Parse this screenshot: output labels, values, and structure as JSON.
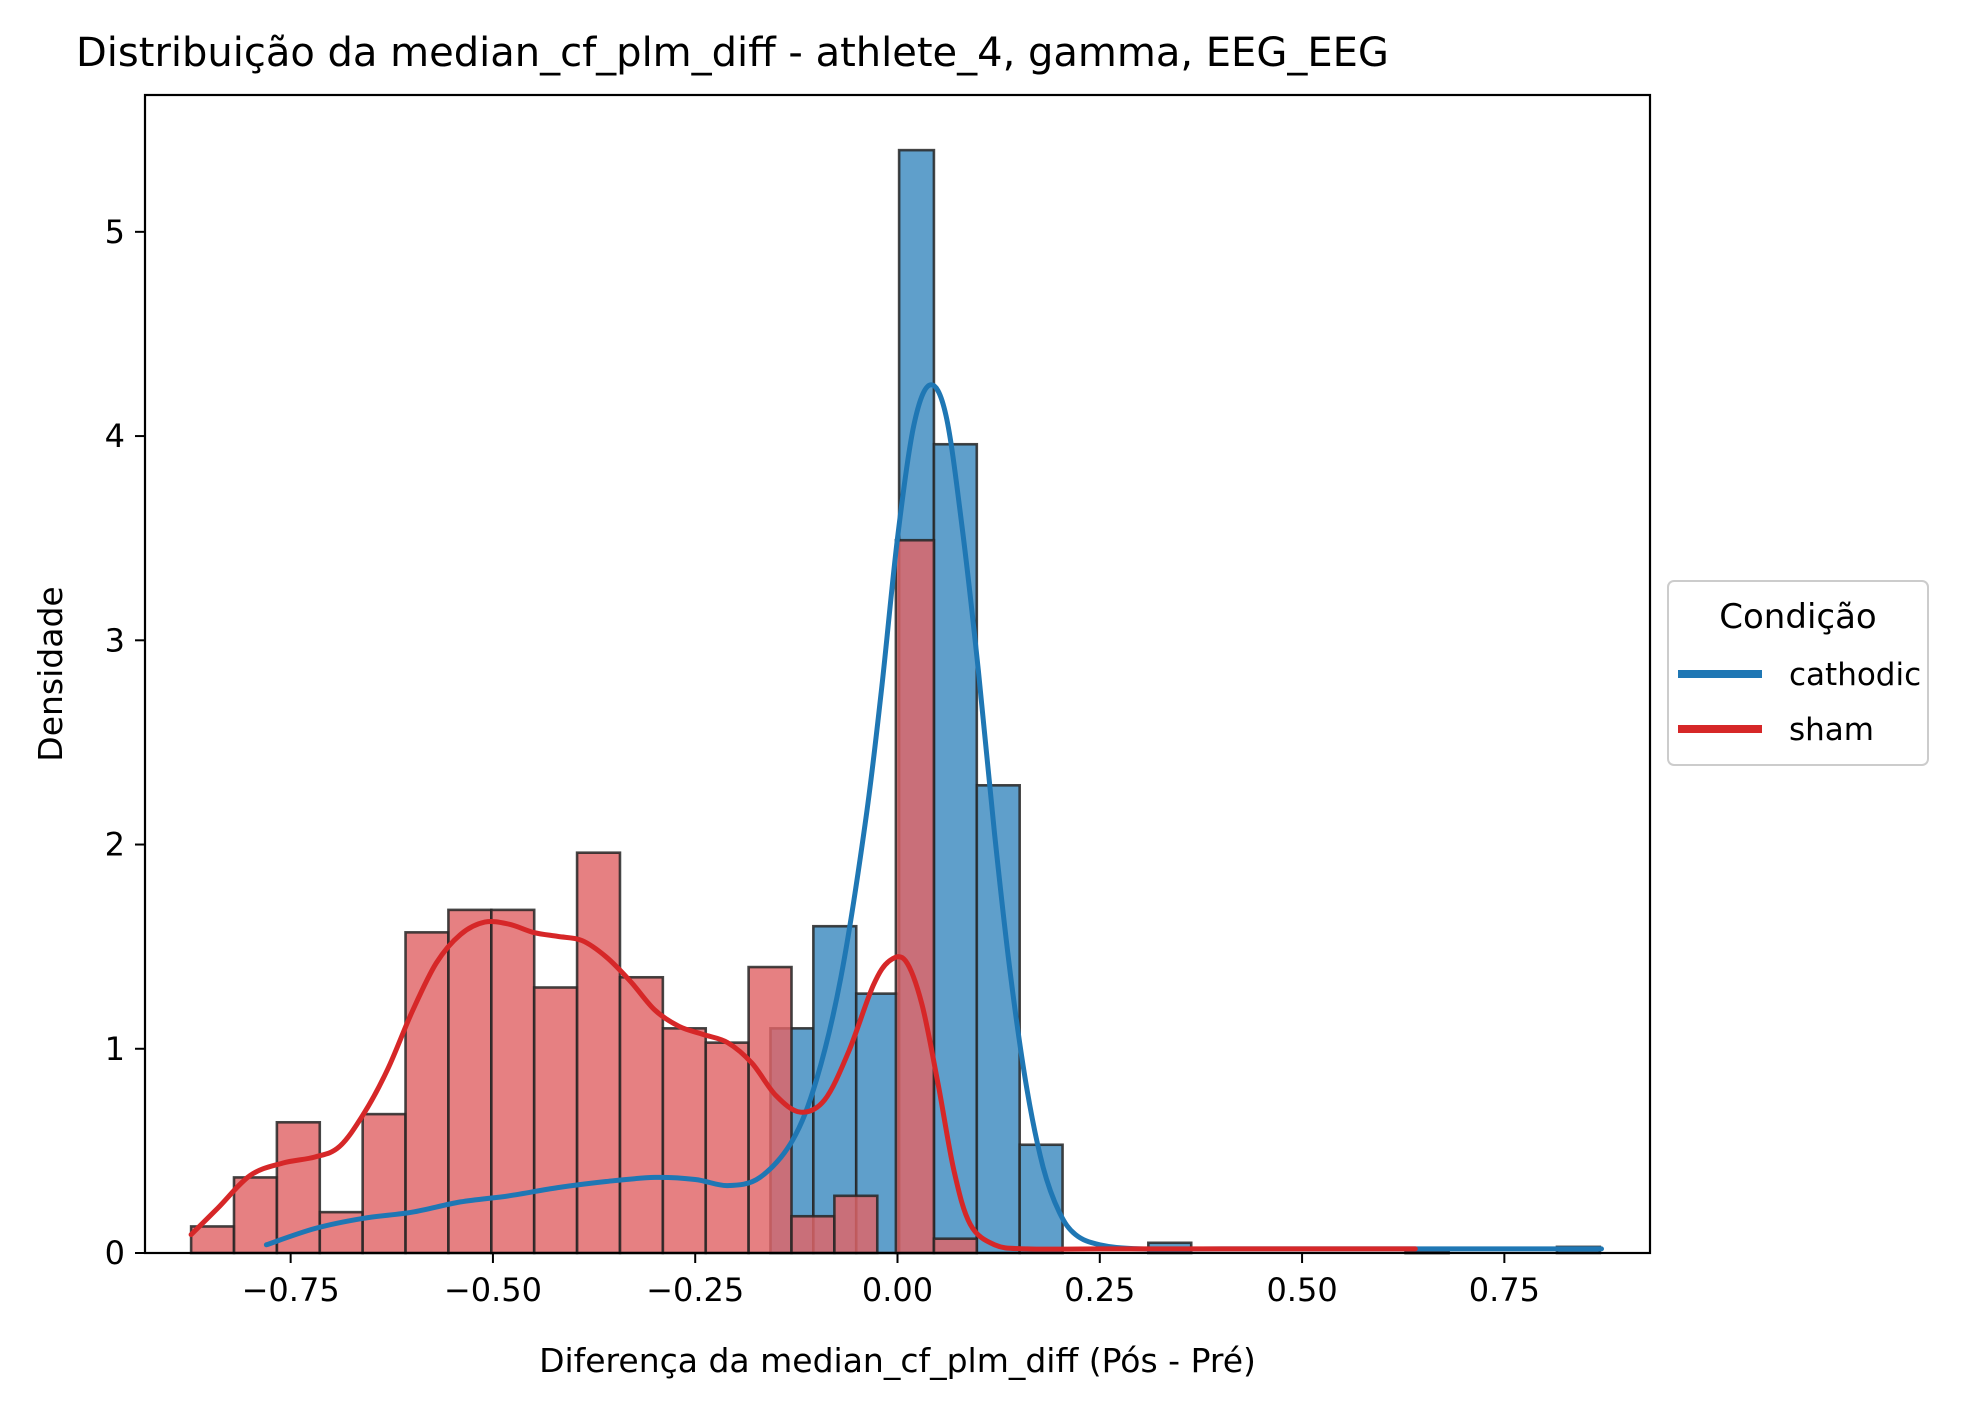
{
  "chart_data": {
    "type": "histogram",
    "title": "Distribuição da median_cf_plm_diff - athlete_4, gamma, EEG_EEG",
    "xlabel": "Diferença da median_cf_plm_diff (Pós - Pré)",
    "ylabel": "Densidade",
    "xlim": [
      -0.93,
      0.93
    ],
    "ylim": [
      0,
      5.67
    ],
    "xticks": [
      -0.75,
      -0.5,
      -0.25,
      0.0,
      0.25,
      0.5,
      0.75
    ],
    "xtick_labels": [
      "−0.75",
      "−0.50",
      "−0.25",
      "0.00",
      "0.25",
      "0.50",
      "0.75"
    ],
    "yticks": [
      0,
      1,
      2,
      3,
      4,
      5
    ],
    "ytick_labels": [
      "0",
      "1",
      "2",
      "3",
      "4",
      "5"
    ],
    "legend": {
      "title": "Condição",
      "placement": "outside right",
      "entries": [
        {
          "label": "cathodic",
          "color": "#1f77b4"
        },
        {
          "label": "sham",
          "color": "#d62728"
        }
      ]
    },
    "series": [
      {
        "name": "cathodic",
        "color": "#1f77b4",
        "bar_color": "#5f9fcb",
        "bins": [
          [
            -0.157,
            -0.104,
            1.1
          ],
          [
            -0.104,
            -0.051,
            1.6
          ],
          [
            -0.051,
            0.002,
            1.27
          ],
          [
            0.002,
            0.045,
            5.4
          ],
          [
            0.045,
            0.098,
            3.96
          ],
          [
            0.098,
            0.151,
            2.29
          ],
          [
            0.151,
            0.204,
            0.53
          ],
          [
            0.31,
            0.363,
            0.05
          ],
          [
            0.628,
            0.681,
            0.02
          ],
          [
            0.815,
            0.868,
            0.03
          ]
        ],
        "kde": [
          [
            -0.78,
            0.04
          ],
          [
            -0.72,
            0.12
          ],
          [
            -0.66,
            0.17
          ],
          [
            -0.6,
            0.2
          ],
          [
            -0.54,
            0.25
          ],
          [
            -0.48,
            0.28
          ],
          [
            -0.42,
            0.32
          ],
          [
            -0.36,
            0.35
          ],
          [
            -0.3,
            0.37
          ],
          [
            -0.25,
            0.36
          ],
          [
            -0.21,
            0.33
          ],
          [
            -0.17,
            0.37
          ],
          [
            -0.13,
            0.55
          ],
          [
            -0.1,
            0.85
          ],
          [
            -0.07,
            1.35
          ],
          [
            -0.04,
            2.1
          ],
          [
            -0.02,
            2.75
          ],
          [
            0.0,
            3.5
          ],
          [
            0.02,
            4.05
          ],
          [
            0.04,
            4.25
          ],
          [
            0.06,
            4.1
          ],
          [
            0.08,
            3.55
          ],
          [
            0.1,
            2.85
          ],
          [
            0.12,
            2.05
          ],
          [
            0.14,
            1.35
          ],
          [
            0.16,
            0.8
          ],
          [
            0.18,
            0.42
          ],
          [
            0.2,
            0.2
          ],
          [
            0.22,
            0.09
          ],
          [
            0.25,
            0.04
          ],
          [
            0.3,
            0.02
          ],
          [
            0.4,
            0.02
          ],
          [
            0.5,
            0.02
          ],
          [
            0.6,
            0.02
          ],
          [
            0.7,
            0.02
          ],
          [
            0.8,
            0.02
          ],
          [
            0.87,
            0.02
          ]
        ]
      },
      {
        "name": "sham",
        "color": "#d62728",
        "bar_color": "#e06466",
        "bins": [
          [
            -0.873,
            -0.82,
            0.13
          ],
          [
            -0.82,
            -0.767,
            0.37
          ],
          [
            -0.767,
            -0.714,
            0.64
          ],
          [
            -0.714,
            -0.661,
            0.2
          ],
          [
            -0.661,
            -0.608,
            0.68
          ],
          [
            -0.608,
            -0.555,
            1.57
          ],
          [
            -0.555,
            -0.502,
            1.68
          ],
          [
            -0.502,
            -0.449,
            1.68
          ],
          [
            -0.449,
            -0.396,
            1.3
          ],
          [
            -0.396,
            -0.343,
            1.96
          ],
          [
            -0.343,
            -0.29,
            1.35
          ],
          [
            -0.29,
            -0.237,
            1.1
          ],
          [
            -0.237,
            -0.184,
            1.03
          ],
          [
            -0.184,
            -0.131,
            1.4
          ],
          [
            -0.131,
            -0.078,
            0.18
          ],
          [
            -0.078,
            -0.025,
            0.28
          ],
          [
            -0.002,
            0.045,
            3.49
          ],
          [
            0.045,
            0.098,
            0.07
          ],
          [
            0.628,
            0.681,
            0.01
          ]
        ],
        "kde": [
          [
            -0.873,
            0.09
          ],
          [
            -0.84,
            0.22
          ],
          [
            -0.8,
            0.38
          ],
          [
            -0.76,
            0.44
          ],
          [
            -0.72,
            0.47
          ],
          [
            -0.69,
            0.52
          ],
          [
            -0.66,
            0.68
          ],
          [
            -0.63,
            0.9
          ],
          [
            -0.6,
            1.18
          ],
          [
            -0.57,
            1.42
          ],
          [
            -0.54,
            1.56
          ],
          [
            -0.51,
            1.62
          ],
          [
            -0.48,
            1.61
          ],
          [
            -0.45,
            1.57
          ],
          [
            -0.42,
            1.55
          ],
          [
            -0.39,
            1.53
          ],
          [
            -0.36,
            1.45
          ],
          [
            -0.33,
            1.33
          ],
          [
            -0.3,
            1.19
          ],
          [
            -0.27,
            1.11
          ],
          [
            -0.24,
            1.07
          ],
          [
            -0.21,
            1.03
          ],
          [
            -0.18,
            0.93
          ],
          [
            -0.15,
            0.77
          ],
          [
            -0.12,
            0.69
          ],
          [
            -0.09,
            0.75
          ],
          [
            -0.06,
            0.99
          ],
          [
            -0.03,
            1.31
          ],
          [
            -0.01,
            1.43
          ],
          [
            0.01,
            1.43
          ],
          [
            0.03,
            1.22
          ],
          [
            0.05,
            0.83
          ],
          [
            0.07,
            0.4
          ],
          [
            0.09,
            0.14
          ],
          [
            0.12,
            0.04
          ],
          [
            0.16,
            0.02
          ],
          [
            0.25,
            0.02
          ],
          [
            0.4,
            0.02
          ],
          [
            0.55,
            0.02
          ],
          [
            0.64,
            0.02
          ]
        ]
      }
    ]
  }
}
